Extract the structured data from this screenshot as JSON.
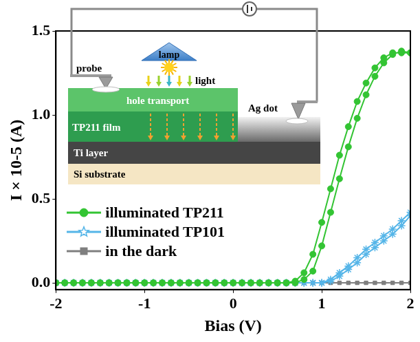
{
  "chart_data": {
    "type": "line",
    "x_label": "Bias (V)",
    "y_label": "I × 10-5 (A)",
    "xlim": [
      -2,
      2
    ],
    "xticks": [
      -2,
      -1,
      0,
      1,
      2
    ],
    "ylim": [
      -0.04,
      1.5
    ],
    "yticks": [
      {
        "value": 0,
        "label": "0.0"
      },
      {
        "value": 0.5,
        "label": "0.5"
      },
      {
        "value": 1,
        "label": "1.0"
      },
      {
        "value": 1.5,
        "label": "1.5"
      }
    ],
    "grid": false,
    "legend": "lower left",
    "inset": {
      "lamp": "lamp",
      "light": "light",
      "probe": "probe",
      "hole_transport": "hole transport",
      "film": "TP211 film",
      "ag_dot": "Ag dot",
      "ti_layer": "Ti layer",
      "substrate": "Si substrate"
    },
    "series": [
      {
        "name": "illuminated TP211",
        "color": "#33c433",
        "marker": "circle",
        "line_style": "solid",
        "x": [
          -2,
          -1.9,
          -1.8,
          -1.7,
          -1.6,
          -1.5,
          -1.4,
          -1.3,
          -1.2,
          -1.1,
          -1,
          -0.9,
          -0.8,
          -0.7,
          -0.6,
          -0.5,
          -0.4,
          -0.3,
          -0.2,
          -0.1,
          0,
          0.1,
          0.2,
          0.3,
          0.4,
          0.5,
          0.6,
          0.7,
          0.8,
          0.9,
          1,
          1.1,
          1.2,
          1.3,
          1.4,
          1.5,
          1.6,
          1.7,
          1.8,
          1.9,
          2,
          2,
          1.9,
          1.8,
          1.7,
          1.6,
          1.5,
          1.4,
          1.3,
          1.2,
          1.1,
          1,
          0.9,
          0.8,
          0.7,
          0.6,
          0.5,
          0.4,
          0.3,
          0.2,
          0.1,
          0,
          -0.1,
          -0.2,
          -0.3,
          -0.4,
          -0.5,
          -0.6,
          -0.7,
          -0.8,
          -0.9,
          -1,
          -1.1,
          -1.2,
          -1.3,
          -1.4,
          -1.5,
          -1.6,
          -1.7,
          -1.8,
          -1.9,
          -2
        ],
        "values": [
          0,
          0,
          0,
          0,
          0,
          0,
          0,
          0,
          0,
          0,
          0,
          0,
          0,
          0,
          0,
          0,
          0,
          0,
          0,
          0,
          0,
          0,
          0,
          0,
          0,
          0,
          0,
          0,
          0.02,
          0.07,
          0.22,
          0.42,
          0.62,
          0.81,
          0.98,
          1.12,
          1.23,
          1.31,
          1.36,
          1.38,
          1.37,
          1.37,
          1.37,
          1.37,
          1.34,
          1.28,
          1.19,
          1.08,
          0.93,
          0.76,
          0.56,
          0.36,
          0.17,
          0.06,
          0.01,
          0,
          0,
          0,
          0,
          0,
          0,
          0,
          0,
          0,
          0,
          0,
          0,
          0,
          0,
          0,
          0,
          0,
          0,
          0,
          0,
          0,
          0,
          0,
          0,
          0,
          0,
          0
        ]
      },
      {
        "name": "illuminated TP101",
        "color": "#55b5e8",
        "marker": "star",
        "line_style": "solid",
        "x": [
          -2,
          -1.9,
          -1.8,
          -1.7,
          -1.6,
          -1.5,
          -1.4,
          -1.3,
          -1.2,
          -1.1,
          -1,
          -0.9,
          -0.8,
          -0.7,
          -0.6,
          -0.5,
          -0.4,
          -0.3,
          -0.2,
          -0.1,
          0,
          0.1,
          0.2,
          0.3,
          0.4,
          0.5,
          0.6,
          0.7,
          0.8,
          0.9,
          1,
          1.1,
          1.2,
          1.3,
          1.4,
          1.5,
          1.6,
          1.7,
          1.8,
          1.9,
          2,
          2,
          1.9,
          1.8,
          1.7,
          1.6,
          1.5,
          1.4,
          1.3,
          1.2,
          1.1,
          1,
          0.9,
          0.8,
          0.7,
          0.6,
          0.5,
          0.4,
          0.3,
          0.2,
          0.1,
          0,
          -0.1,
          -0.2,
          -0.3,
          -0.4,
          -0.5,
          -0.6,
          -0.7,
          -0.8,
          -0.9,
          -1,
          -1.1,
          -1.2,
          -1.3,
          -1.4,
          -1.5,
          -1.6,
          -1.7,
          -1.8,
          -1.9,
          -2
        ],
        "values": [
          0,
          0,
          0,
          0,
          0,
          0,
          0,
          0,
          0,
          0,
          0,
          0,
          0,
          0,
          0,
          0,
          0,
          0,
          0,
          0,
          0,
          0,
          0,
          0,
          0,
          0,
          0,
          0,
          0,
          0,
          0,
          0.01,
          0.04,
          0.08,
          0.12,
          0.17,
          0.21,
          0.25,
          0.29,
          0.34,
          0.4,
          0.42,
          0.37,
          0.32,
          0.28,
          0.24,
          0.2,
          0.15,
          0.1,
          0.06,
          0.02,
          0,
          0,
          0,
          0,
          0,
          0,
          0,
          0,
          0,
          0,
          0,
          0,
          0,
          0,
          0,
          0,
          0,
          0,
          0,
          0,
          0,
          0,
          0,
          0,
          0,
          0,
          0,
          0,
          0,
          0,
          0
        ]
      },
      {
        "name": "in the dark",
        "color": "#7f7f7f",
        "marker": "square",
        "line_style": "solid",
        "x": [
          -2,
          -1.9,
          -1.8,
          -1.7,
          -1.6,
          -1.5,
          -1.4,
          -1.3,
          -1.2,
          -1.1,
          -1,
          -0.9,
          -0.8,
          -0.7,
          -0.6,
          -0.5,
          -0.4,
          -0.3,
          -0.2,
          -0.1,
          0,
          0.1,
          0.2,
          0.3,
          0.4,
          0.5,
          0.6,
          0.7,
          0.8,
          0.9,
          1,
          1.1,
          1.2,
          1.3,
          1.4,
          1.5,
          1.6,
          1.7,
          1.8,
          1.9,
          2
        ],
        "values": [
          0,
          0,
          0,
          0,
          0,
          0,
          0,
          0,
          0,
          0,
          0,
          0,
          0,
          0,
          0,
          0,
          0,
          0,
          0,
          0,
          0,
          0,
          0,
          0,
          0,
          0,
          0,
          0,
          0,
          0,
          0,
          0,
          0,
          0,
          0,
          0,
          0,
          0,
          0,
          0,
          0
        ]
      }
    ]
  }
}
